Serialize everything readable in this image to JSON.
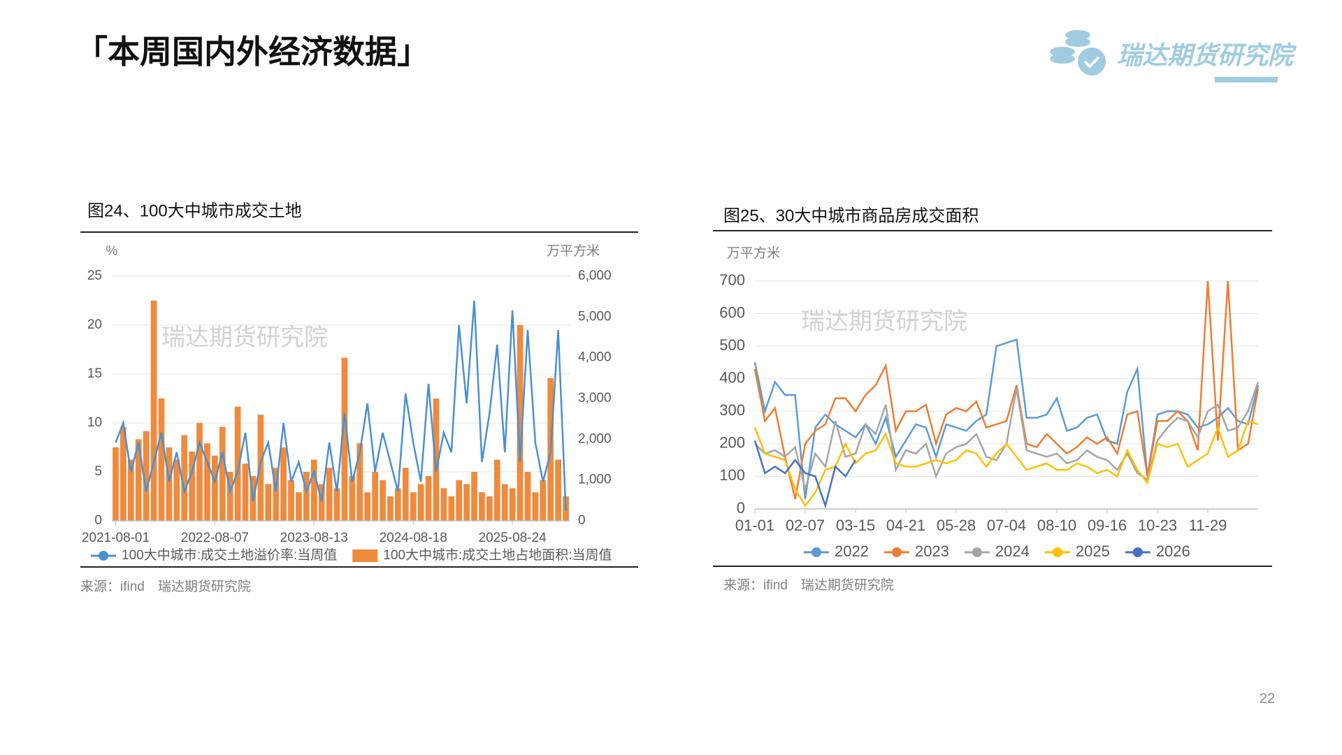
{
  "header": {
    "title": "「本周国内外经济数据」",
    "logo_text": "瑞达期货研究院"
  },
  "page_number": "22",
  "chart_data": [
    {
      "type": "combo",
      "caption": "图24、100大中城市成交土地",
      "source": "来源：ifind　瑞达期货研究院",
      "watermark": "瑞达期货研究院",
      "ylabel": "%",
      "y2label": "万平方米",
      "categories": [
        "2021-08-01",
        null,
        null,
        null,
        null,
        null,
        null,
        null,
        null,
        null,
        null,
        null,
        null,
        "2022-08-07",
        null,
        null,
        null,
        null,
        null,
        null,
        null,
        null,
        null,
        null,
        null,
        null,
        "2023-08-13",
        null,
        null,
        null,
        null,
        null,
        null,
        null,
        null,
        null,
        null,
        null,
        null,
        "2024-08-18",
        null,
        null,
        null,
        null,
        null,
        null,
        null,
        null,
        null,
        null,
        null,
        null,
        "2025-08-24",
        null,
        null,
        null,
        null,
        null,
        null,
        null
      ],
      "ylim": [
        0,
        25
      ],
      "yticks": [
        0,
        5,
        10,
        15,
        20,
        25
      ],
      "y2lim": [
        0,
        6000
      ],
      "y2ticks": [
        0,
        {
          "value": 1000,
          "label": "1,000"
        },
        {
          "value": 2000,
          "label": "2,000"
        },
        {
          "value": 3000,
          "label": "3,000"
        },
        {
          "value": 4000,
          "label": "4,000"
        },
        {
          "value": 5000,
          "label": "5,000"
        },
        {
          "value": 6000,
          "label": "6,000"
        }
      ],
      "grid": true,
      "series": [
        {
          "name": "100大中城市:成交土地溢价率:当周值",
          "type": "line",
          "color": "#4a90d0",
          "values": [
            8,
            10,
            5,
            8,
            3,
            6,
            9,
            4,
            7,
            3,
            5,
            8,
            6,
            4,
            7,
            3,
            5,
            9,
            2,
            6,
            8,
            3,
            10,
            4,
            6,
            3,
            5,
            2,
            8,
            3,
            11,
            4,
            7,
            12,
            5,
            9,
            6,
            3,
            13,
            8,
            4,
            14,
            5,
            9,
            7,
            20,
            12,
            22.5,
            6,
            11,
            18,
            7,
            21.5,
            6,
            19.5,
            8,
            4,
            7,
            19.5,
            1
          ]
        },
        {
          "name": "100大中城市:成交土地占地面积:当周值",
          "type": "bar",
          "axis": "y2",
          "color": "#f08a3c",
          "values": [
            1800,
            2300,
            1500,
            2000,
            2200,
            5400,
            3000,
            1800,
            1500,
            2100,
            1700,
            2400,
            1900,
            1600,
            2300,
            1200,
            2800,
            1400,
            1100,
            2600,
            900,
            1300,
            1800,
            1000,
            700,
            1200,
            1500,
            900,
            1300,
            800,
            4000,
            1100,
            1900,
            700,
            1200,
            1000,
            600,
            800,
            1300,
            700,
            900,
            1100,
            3000,
            800,
            600,
            1000,
            900,
            1200,
            700,
            600,
            1500,
            900,
            800,
            4800,
            1200,
            700,
            1000,
            3500,
            1500,
            600
          ]
        }
      ]
    },
    {
      "type": "line",
      "caption": "图25、30大中城市商品房成交面积",
      "source": "来源：ifind　瑞达期货研究院",
      "watermark": "瑞达期货研究院",
      "ylabel": "万平方米",
      "categories": [
        "01-01",
        null,
        null,
        null,
        null,
        "02-07",
        null,
        null,
        null,
        null,
        "03-15",
        null,
        null,
        null,
        null,
        "04-21",
        null,
        null,
        null,
        null,
        "05-28",
        null,
        null,
        null,
        null,
        "07-04",
        null,
        null,
        null,
        null,
        "08-10",
        null,
        null,
        null,
        null,
        "09-16",
        null,
        null,
        null,
        null,
        "10-23",
        null,
        null,
        null,
        null,
        "11-29",
        null,
        null,
        null,
        null,
        null
      ],
      "ylim": [
        0,
        700
      ],
      "yticks": [
        0,
        100,
        200,
        300,
        400,
        500,
        600,
        700
      ],
      "grid": true,
      "series": [
        {
          "name": "2022",
          "color": "#5b9bd5",
          "values": [
            450,
            300,
            390,
            350,
            350,
            30,
            250,
            290,
            260,
            240,
            220,
            260,
            200,
            280,
            160,
            210,
            260,
            250,
            160,
            260,
            250,
            240,
            270,
            290,
            500,
            510,
            520,
            280,
            280,
            290,
            340,
            240,
            250,
            280,
            290,
            210,
            200,
            360,
            430,
            100,
            290,
            300,
            300,
            290,
            250,
            260,
            280,
            310,
            270,
            260,
            380
          ]
        },
        {
          "name": "2023",
          "color": "#ed7d31",
          "values": [
            430,
            270,
            310,
            160,
            30,
            200,
            240,
            260,
            340,
            340,
            300,
            350,
            380,
            440,
            240,
            300,
            300,
            320,
            200,
            290,
            310,
            300,
            330,
            250,
            260,
            270,
            380,
            200,
            190,
            230,
            200,
            170,
            190,
            220,
            200,
            220,
            170,
            290,
            300,
            100,
            270,
            270,
            300,
            270,
            180,
            700,
            210,
            700,
            180,
            200,
            370
          ]
        },
        {
          "name": "2024",
          "color": "#a5a5a5",
          "values": [
            200,
            170,
            180,
            160,
            190,
            60,
            170,
            130,
            270,
            160,
            170,
            260,
            230,
            320,
            120,
            180,
            170,
            200,
            100,
            170,
            190,
            200,
            230,
            160,
            150,
            200,
            370,
            180,
            170,
            160,
            170,
            140,
            150,
            180,
            160,
            150,
            120,
            170,
            110,
            90,
            210,
            250,
            280,
            270,
            220,
            300,
            320,
            240,
            250,
            300,
            390
          ]
        },
        {
          "name": "2025",
          "color": "#ffc000",
          "values": [
            250,
            170,
            160,
            150,
            60,
            10,
            50,
            120,
            130,
            200,
            140,
            170,
            180,
            230,
            140,
            130,
            130,
            140,
            150,
            140,
            150,
            180,
            170,
            130,
            170,
            200,
            160,
            120,
            130,
            140,
            120,
            120,
            140,
            130,
            110,
            120,
            100,
            180,
            120,
            80,
            200,
            190,
            200,
            130,
            150,
            170,
            250,
            160,
            180,
            270,
            260
          ]
        },
        {
          "name": "2026",
          "color": "#4472c4",
          "values": [
            210,
            110,
            130,
            110,
            150,
            110,
            100,
            10,
            130,
            100,
            150,
            null,
            null,
            null,
            null,
            null,
            null,
            null,
            null,
            null,
            null,
            null,
            null,
            null,
            null,
            null,
            null,
            null,
            null,
            null,
            null,
            null,
            null,
            null,
            null,
            null,
            null,
            null,
            null,
            null,
            null,
            null,
            null,
            null,
            null,
            null,
            null,
            null,
            null,
            null,
            null
          ]
        }
      ]
    }
  ]
}
